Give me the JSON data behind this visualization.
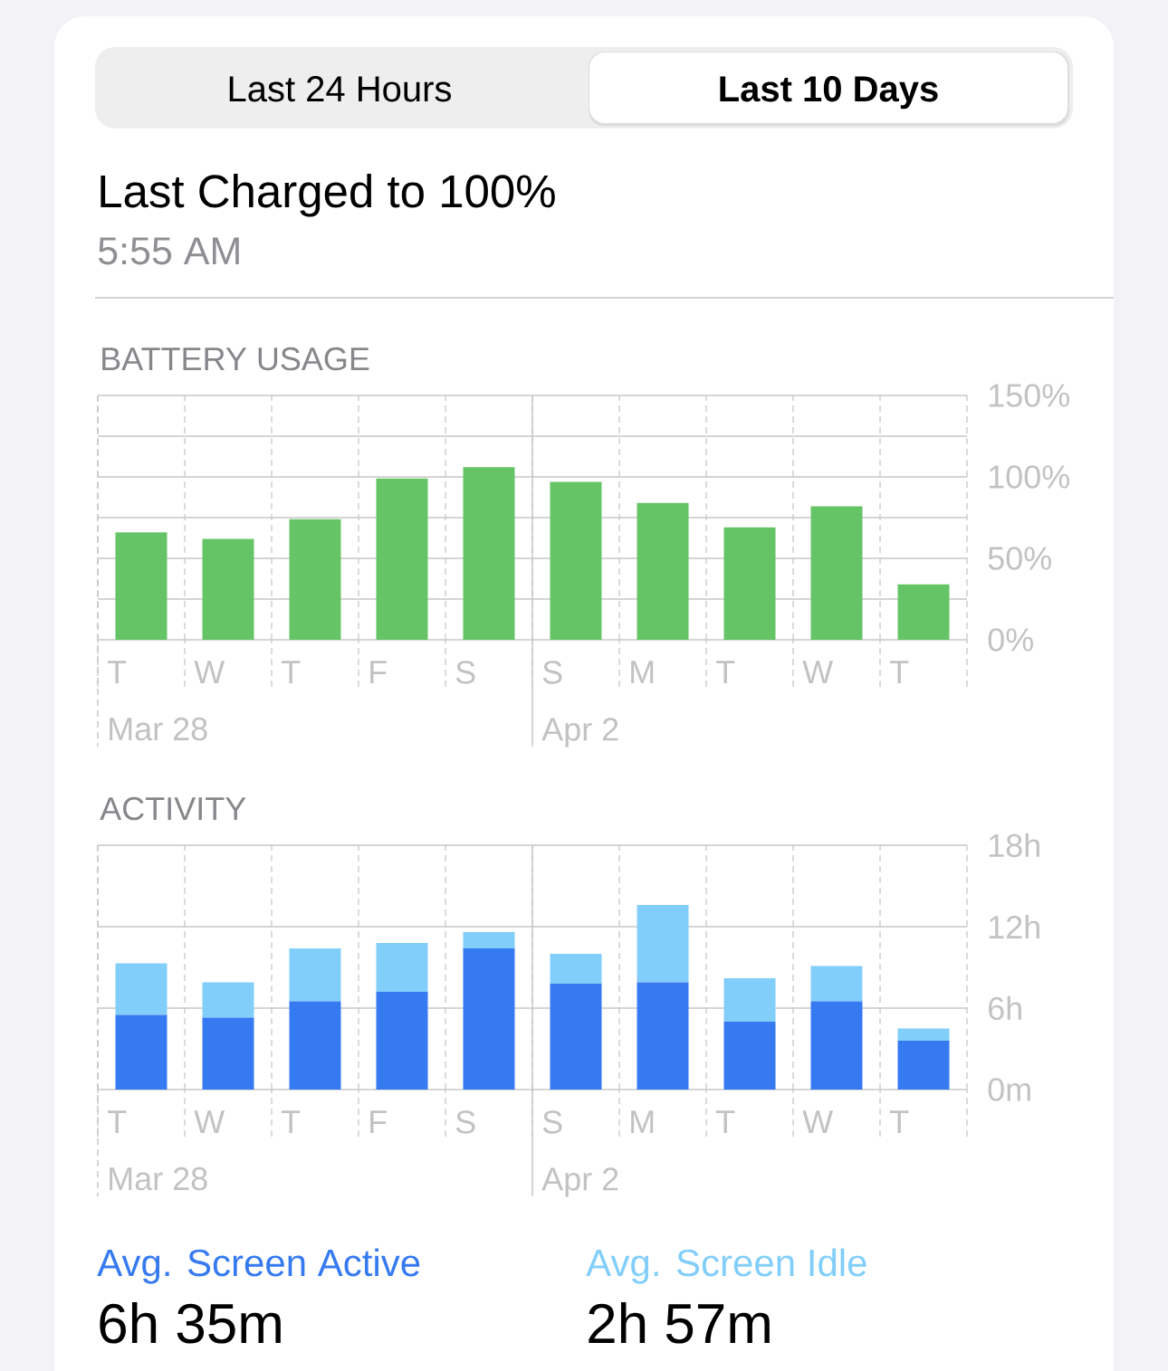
{
  "chart_data": [
    {
      "type": "other",
      "title": "Last Charged to 100%",
      "subtitle": "5:55 AM",
      "annotations": [
        "Last 24 Hours",
        "Last 10 Days"
      ]
    },
    {
      "type": "bar",
      "title": "BATTERY USAGE",
      "categories": [
        "T\nMar 28",
        "W",
        "T",
        "F",
        "S",
        "S\nApr 2",
        "M",
        "T",
        "W",
        "T"
      ],
      "values": [
        66,
        62,
        74,
        99,
        106,
        97,
        84,
        69,
        82,
        34
      ],
      "color": "#65c466",
      "ylim": [
        0,
        150
      ],
      "yticks": [
        {
          "value": 0,
          "label": "0%"
        },
        {
          "value": 25,
          "label": null
        },
        {
          "value": 50,
          "label": "50%"
        },
        {
          "value": 75,
          "label": null
        },
        {
          "value": 100,
          "label": "100%"
        },
        {
          "value": 125,
          "label": null
        },
        {
          "value": 150,
          "label": "150%"
        }
      ],
      "grid": true
    },
    {
      "type": "bar",
      "title": "ACTIVITY",
      "stacked": true,
      "categories": [
        "T\nMar 28",
        "W",
        "T",
        "F",
        "S",
        "S\nApr 2",
        "M",
        "T",
        "W",
        "T"
      ],
      "series": [
        {
          "name": "Avg. Screen Active",
          "color": "#367af2",
          "values": [
            5.5,
            5.3,
            6.5,
            7.2,
            10.4,
            7.8,
            7.9,
            5.0,
            6.5,
            3.6
          ]
        },
        {
          "name": "Avg. Screen Idle",
          "color": "#82cefa",
          "values": [
            3.8,
            2.6,
            3.9,
            3.6,
            1.2,
            2.2,
            5.7,
            3.2,
            2.6,
            0.9
          ]
        }
      ],
      "legend": "bottom",
      "annotations": [
        "6h 35m",
        "2h 57m"
      ],
      "ylim": [
        0,
        18
      ],
      "yticks": [
        {
          "value": 0,
          "label": "0m"
        },
        {
          "value": 6,
          "label": "6h"
        },
        {
          "value": 12,
          "label": "12h"
        },
        {
          "value": 18,
          "label": "18h"
        }
      ],
      "grid": true
    }
  ]
}
